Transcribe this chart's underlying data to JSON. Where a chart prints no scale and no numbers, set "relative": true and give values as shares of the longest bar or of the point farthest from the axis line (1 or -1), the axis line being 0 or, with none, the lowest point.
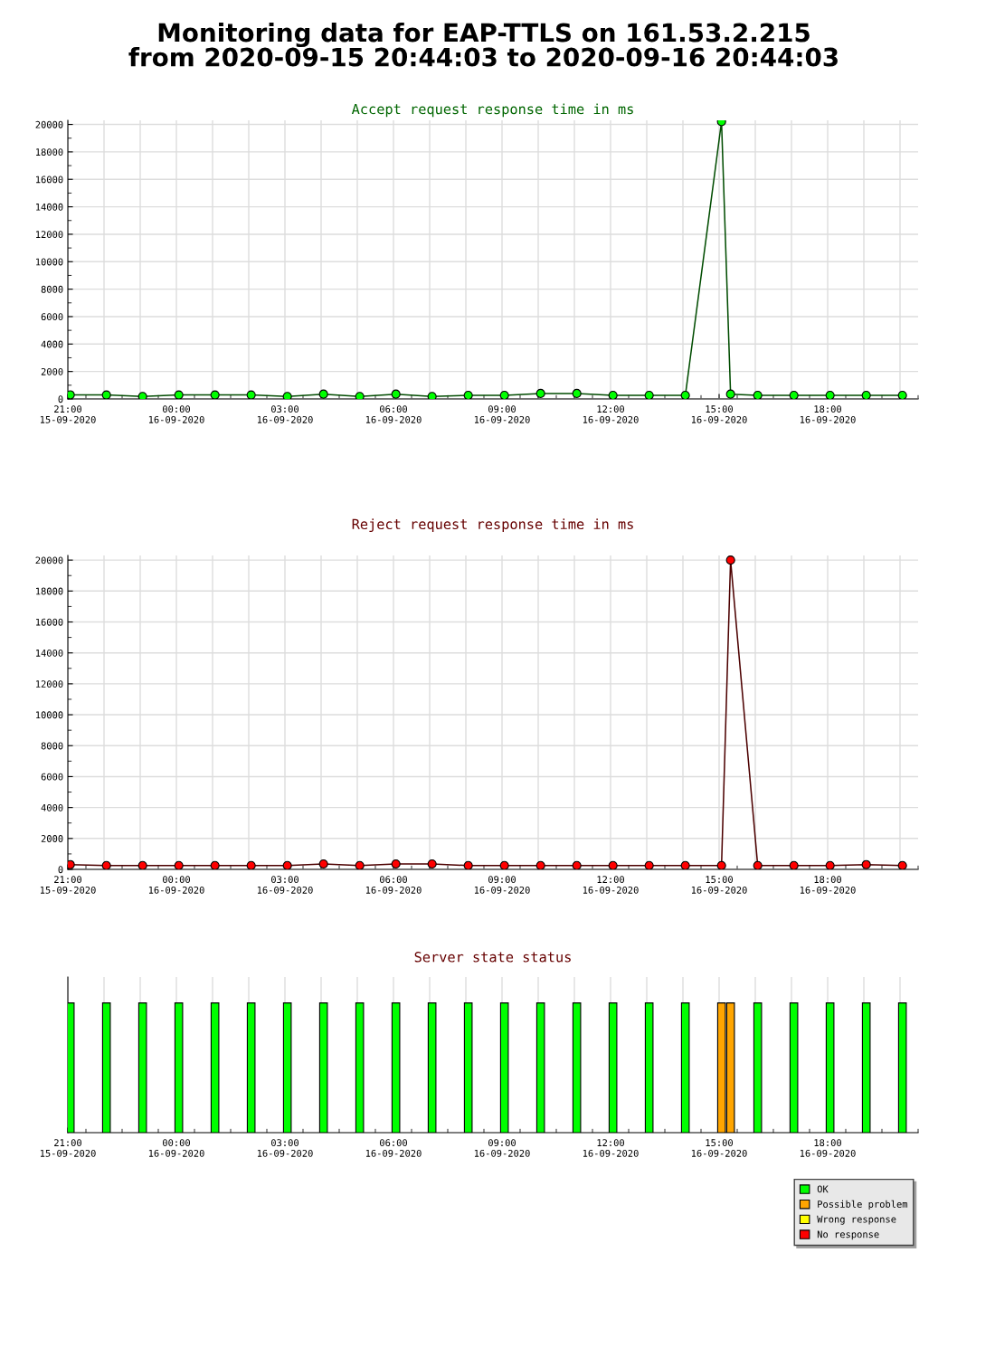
{
  "chart_data": [
    {
      "type": "line",
      "title": "Monitoring data for EAP-TTLS on 161.53.2.215\nfrom 2020-09-15 20:44:03 to 2020-09-16 20:44:03",
      "subtitle": "Accept request response time in ms",
      "x": [
        "2020-09-15T21:04",
        "2020-09-15T22:04",
        "2020-09-15T23:04",
        "2020-09-16T00:04",
        "2020-09-16T01:04",
        "2020-09-16T02:04",
        "2020-09-16T03:04",
        "2020-09-16T04:04",
        "2020-09-16T05:04",
        "2020-09-16T06:04",
        "2020-09-16T07:04",
        "2020-09-16T08:04",
        "2020-09-16T09:04",
        "2020-09-16T10:04",
        "2020-09-16T11:04",
        "2020-09-16T12:04",
        "2020-09-16T13:04",
        "2020-09-16T14:04",
        "2020-09-16T15:04",
        "2020-09-16T15:19",
        "2020-09-16T16:04",
        "2020-09-16T17:04",
        "2020-09-16T18:04",
        "2020-09-16T19:04",
        "2020-09-16T20:04"
      ],
      "values": [
        300,
        290,
        180,
        290,
        290,
        290,
        180,
        350,
        180,
        350,
        180,
        260,
        260,
        400,
        400,
        260,
        260,
        260,
        20200,
        350,
        260,
        260,
        260,
        260,
        260
      ],
      "color": "#00ff00",
      "marker": "circle",
      "line_style": "solid",
      "grid": true,
      "xlim": [
        "2020-09-15T21:00",
        "2020-09-16T20:30"
      ],
      "xticks": [
        {
          "value": "2020-09-15T21:00",
          "label": "21:00\n15-09-2020"
        },
        {
          "value": "2020-09-15T22:00",
          "label": null
        },
        {
          "value": "2020-09-15T23:00",
          "label": null
        },
        {
          "value": "2020-09-16T00:00",
          "label": "00:00\n16-09-2020"
        },
        {
          "value": "2020-09-16T01:00",
          "label": null
        },
        {
          "value": "2020-09-16T02:00",
          "label": null
        },
        {
          "value": "2020-09-16T03:00",
          "label": "03:00\n16-09-2020"
        },
        {
          "value": "2020-09-16T04:00",
          "label": null
        },
        {
          "value": "2020-09-16T05:00",
          "label": null
        },
        {
          "value": "2020-09-16T06:00",
          "label": "06:00\n16-09-2020"
        },
        {
          "value": "2020-09-16T07:00",
          "label": null
        },
        {
          "value": "2020-09-16T08:00",
          "label": null
        },
        {
          "value": "2020-09-16T09:00",
          "label": "09:00\n16-09-2020"
        },
        {
          "value": "2020-09-16T10:00",
          "label": null
        },
        {
          "value": "2020-09-16T11:00",
          "label": null
        },
        {
          "value": "2020-09-16T12:00",
          "label": "12:00\n16-09-2020"
        },
        {
          "value": "2020-09-16T13:00",
          "label": null
        },
        {
          "value": "2020-09-16T14:00",
          "label": null
        },
        {
          "value": "2020-09-16T15:00",
          "label": "15:00\n16-09-2020"
        },
        {
          "value": "2020-09-16T16:00",
          "label": null
        },
        {
          "value": "2020-09-16T17:00",
          "label": null
        },
        {
          "value": "2020-09-16T18:00",
          "label": "18:00\n16-09-2020"
        },
        {
          "value": "2020-09-16T19:00",
          "label": null
        },
        {
          "value": "2020-09-16T20:00",
          "label": null
        }
      ],
      "ylim": [
        0,
        20300
      ],
      "yticks": [
        0,
        2000,
        4000,
        6000,
        8000,
        10000,
        12000,
        14000,
        16000,
        18000,
        20000
      ]
    },
    {
      "type": "line",
      "title": "Reject request response time in ms",
      "x": [
        "2020-09-15T21:04",
        "2020-09-15T22:04",
        "2020-09-15T23:04",
        "2020-09-16T00:04",
        "2020-09-16T01:04",
        "2020-09-16T02:04",
        "2020-09-16T03:04",
        "2020-09-16T04:04",
        "2020-09-16T05:04",
        "2020-09-16T06:04",
        "2020-09-16T07:04",
        "2020-09-16T08:04",
        "2020-09-16T09:04",
        "2020-09-16T10:04",
        "2020-09-16T11:04",
        "2020-09-16T12:04",
        "2020-09-16T13:04",
        "2020-09-16T14:04",
        "2020-09-16T15:04",
        "2020-09-16T15:19",
        "2020-09-16T16:04",
        "2020-09-16T17:04",
        "2020-09-16T18:04",
        "2020-09-16T19:04",
        "2020-09-16T20:04"
      ],
      "values": [
        310,
        250,
        250,
        250,
        250,
        250,
        250,
        350,
        250,
        350,
        350,
        250,
        250,
        250,
        250,
        250,
        250,
        250,
        250,
        20000,
        250,
        250,
        250,
        310,
        250
      ],
      "color": "#ff0000",
      "marker": "circle",
      "line_style": "solid",
      "grid": true,
      "xlim": [
        "2020-09-15T21:00",
        "2020-09-16T20:30"
      ],
      "xticks": [
        {
          "value": "2020-09-15T21:00",
          "label": "21:00\n15-09-2020"
        },
        {
          "value": "2020-09-15T22:00",
          "label": null
        },
        {
          "value": "2020-09-15T23:00",
          "label": null
        },
        {
          "value": "2020-09-16T00:00",
          "label": "00:00\n16-09-2020"
        },
        {
          "value": "2020-09-16T01:00",
          "label": null
        },
        {
          "value": "2020-09-16T02:00",
          "label": null
        },
        {
          "value": "2020-09-16T03:00",
          "label": "03:00\n16-09-2020"
        },
        {
          "value": "2020-09-16T04:00",
          "label": null
        },
        {
          "value": "2020-09-16T05:00",
          "label": null
        },
        {
          "value": "2020-09-16T06:00",
          "label": "06:00\n16-09-2020"
        },
        {
          "value": "2020-09-16T07:00",
          "label": null
        },
        {
          "value": "2020-09-16T08:00",
          "label": null
        },
        {
          "value": "2020-09-16T09:00",
          "label": "09:00\n16-09-2020"
        },
        {
          "value": "2020-09-16T10:00",
          "label": null
        },
        {
          "value": "2020-09-16T11:00",
          "label": null
        },
        {
          "value": "2020-09-16T12:00",
          "label": "12:00\n16-09-2020"
        },
        {
          "value": "2020-09-16T13:00",
          "label": null
        },
        {
          "value": "2020-09-16T14:00",
          "label": null
        },
        {
          "value": "2020-09-16T15:00",
          "label": "15:00\n16-09-2020"
        },
        {
          "value": "2020-09-16T16:00",
          "label": null
        },
        {
          "value": "2020-09-16T17:00",
          "label": null
        },
        {
          "value": "2020-09-16T18:00",
          "label": "18:00\n16-09-2020"
        },
        {
          "value": "2020-09-16T19:00",
          "label": null
        },
        {
          "value": "2020-09-16T20:00",
          "label": null
        }
      ],
      "ylim": [
        0,
        20300
      ],
      "yticks": [
        0,
        2000,
        4000,
        6000,
        8000,
        10000,
        12000,
        14000,
        16000,
        18000,
        20000
      ]
    },
    {
      "type": "bar",
      "title": "Server state status",
      "relative": true,
      "x": [
        "2020-09-15T21:04",
        "2020-09-15T22:04",
        "2020-09-15T23:04",
        "2020-09-16T00:04",
        "2020-09-16T01:04",
        "2020-09-16T02:04",
        "2020-09-16T03:04",
        "2020-09-16T04:04",
        "2020-09-16T05:04",
        "2020-09-16T06:04",
        "2020-09-16T07:04",
        "2020-09-16T08:04",
        "2020-09-16T09:04",
        "2020-09-16T10:04",
        "2020-09-16T11:04",
        "2020-09-16T12:04",
        "2020-09-16T13:04",
        "2020-09-16T14:04",
        "2020-09-16T15:04",
        "2020-09-16T15:19",
        "2020-09-16T16:04",
        "2020-09-16T17:04",
        "2020-09-16T18:04",
        "2020-09-16T19:04",
        "2020-09-16T20:04"
      ],
      "series": [
        {
          "name": "OK",
          "color": "#00ff00",
          "values": [
            1,
            1,
            1,
            1,
            1,
            1,
            1,
            1,
            1,
            1,
            1,
            1,
            1,
            1,
            1,
            1,
            1,
            1,
            null,
            null,
            1,
            1,
            1,
            1,
            1
          ]
        },
        {
          "name": "Possible problem",
          "color": "#ffa500",
          "values": [
            null,
            null,
            null,
            null,
            null,
            null,
            null,
            null,
            null,
            null,
            null,
            null,
            null,
            null,
            null,
            null,
            null,
            null,
            1,
            1,
            null,
            null,
            null,
            null,
            null
          ]
        },
        {
          "name": "Wrong response",
          "color": "#ffff00",
          "values": [
            null,
            null,
            null,
            null,
            null,
            null,
            null,
            null,
            null,
            null,
            null,
            null,
            null,
            null,
            null,
            null,
            null,
            null,
            null,
            null,
            null,
            null,
            null,
            null,
            null
          ]
        },
        {
          "name": "No response",
          "color": "#ff0000",
          "values": [
            null,
            null,
            null,
            null,
            null,
            null,
            null,
            null,
            null,
            null,
            null,
            null,
            null,
            null,
            null,
            null,
            null,
            null,
            null,
            null,
            null,
            null,
            null,
            null,
            null
          ]
        }
      ],
      "legend": "bottom right",
      "grid": true,
      "xlim": [
        "2020-09-15T21:00",
        "2020-09-16T20:30"
      ],
      "xticks": [
        {
          "value": "2020-09-15T21:00",
          "label": "21:00\n15-09-2020"
        },
        {
          "value": "2020-09-15T22:00",
          "label": null
        },
        {
          "value": "2020-09-15T23:00",
          "label": null
        },
        {
          "value": "2020-09-16T00:00",
          "label": "00:00\n16-09-2020"
        },
        {
          "value": "2020-09-16T01:00",
          "label": null
        },
        {
          "value": "2020-09-16T02:00",
          "label": null
        },
        {
          "value": "2020-09-16T03:00",
          "label": "03:00\n16-09-2020"
        },
        {
          "value": "2020-09-16T04:00",
          "label": null
        },
        {
          "value": "2020-09-16T05:00",
          "label": null
        },
        {
          "value": "2020-09-16T06:00",
          "label": "06:00\n16-09-2020"
        },
        {
          "value": "2020-09-16T07:00",
          "label": null
        },
        {
          "value": "2020-09-16T08:00",
          "label": null
        },
        {
          "value": "2020-09-16T09:00",
          "label": "09:00\n16-09-2020"
        },
        {
          "value": "2020-09-16T10:00",
          "label": null
        },
        {
          "value": "2020-09-16T11:00",
          "label": null
        },
        {
          "value": "2020-09-16T12:00",
          "label": "12:00\n16-09-2020"
        },
        {
          "value": "2020-09-16T13:00",
          "label": null
        },
        {
          "value": "2020-09-16T14:00",
          "label": null
        },
        {
          "value": "2020-09-16T15:00",
          "label": "15:00\n16-09-2020"
        },
        {
          "value": "2020-09-16T16:00",
          "label": null
        },
        {
          "value": "2020-09-16T17:00",
          "label": null
        },
        {
          "value": "2020-09-16T18:00",
          "label": "18:00\n16-09-2020"
        },
        {
          "value": "2020-09-16T19:00",
          "label": null
        },
        {
          "value": "2020-09-16T20:00",
          "label": null
        }
      ]
    }
  ]
}
